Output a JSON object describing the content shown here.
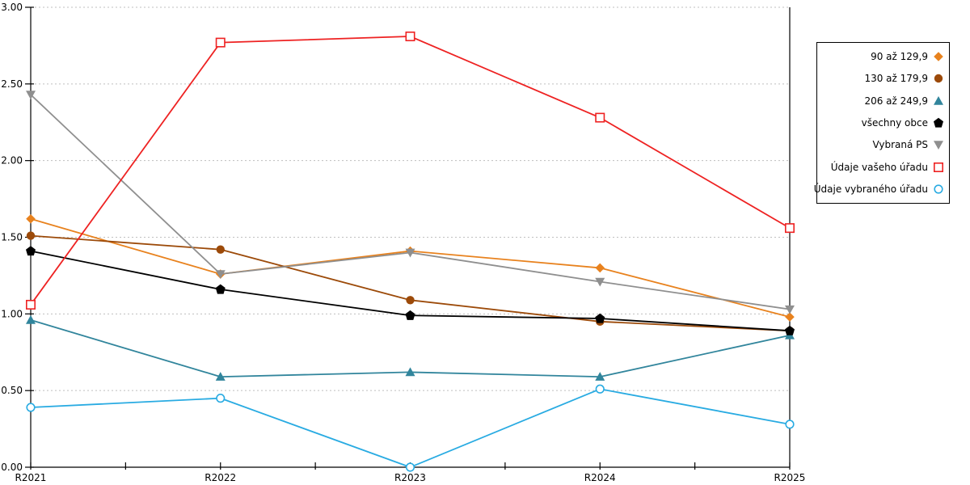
{
  "chart_data": {
    "type": "line",
    "title": "",
    "xlabel": "",
    "ylabel": "",
    "categories": [
      "R2021",
      "R2022",
      "R2023",
      "R2024",
      "R2025"
    ],
    "y_axis": {
      "min": 0,
      "max": 3,
      "step": 0.5,
      "tick_labels": [
        "0.00",
        "0.50",
        "1.00",
        "1.50",
        "2.00",
        "2.50",
        "3.00"
      ]
    },
    "grid": "horizontal-dotted",
    "grid_color": "#bfbfbf",
    "axis_color": "#000000",
    "legend_position": "right",
    "series": [
      {
        "name": "90 až 129,9",
        "marker": "diamond",
        "color": "#e8821e",
        "values": [
          1.62,
          1.26,
          1.41,
          1.3,
          0.98
        ]
      },
      {
        "name": "130 až 179,9",
        "marker": "circle",
        "color": "#9c4a09",
        "values": [
          1.51,
          1.42,
          1.09,
          0.95,
          0.89
        ]
      },
      {
        "name": "206 až 249,9",
        "marker": "triangle-up",
        "color": "#31859c",
        "values": [
          0.96,
          0.59,
          0.62,
          0.59,
          0.86
        ]
      },
      {
        "name": "všechny obce",
        "marker": "pentagon",
        "color": "#000000",
        "values": [
          1.41,
          1.16,
          0.99,
          0.97,
          0.89
        ]
      },
      {
        "name": "Vybraná PS",
        "marker": "triangle-down",
        "color": "#8f8f8f",
        "values": [
          2.43,
          1.26,
          1.4,
          1.21,
          1.03
        ]
      },
      {
        "name": "Údaje vašeho úřadu",
        "marker": "square-open",
        "color": "#ee2222",
        "values": [
          1.06,
          2.77,
          2.81,
          2.28,
          1.56
        ]
      },
      {
        "name": "Údaje vybraného úřadu",
        "marker": "circle-open",
        "color": "#29abe2",
        "values": [
          0.39,
          0.45,
          0.0,
          0.51,
          0.28
        ]
      }
    ]
  }
}
